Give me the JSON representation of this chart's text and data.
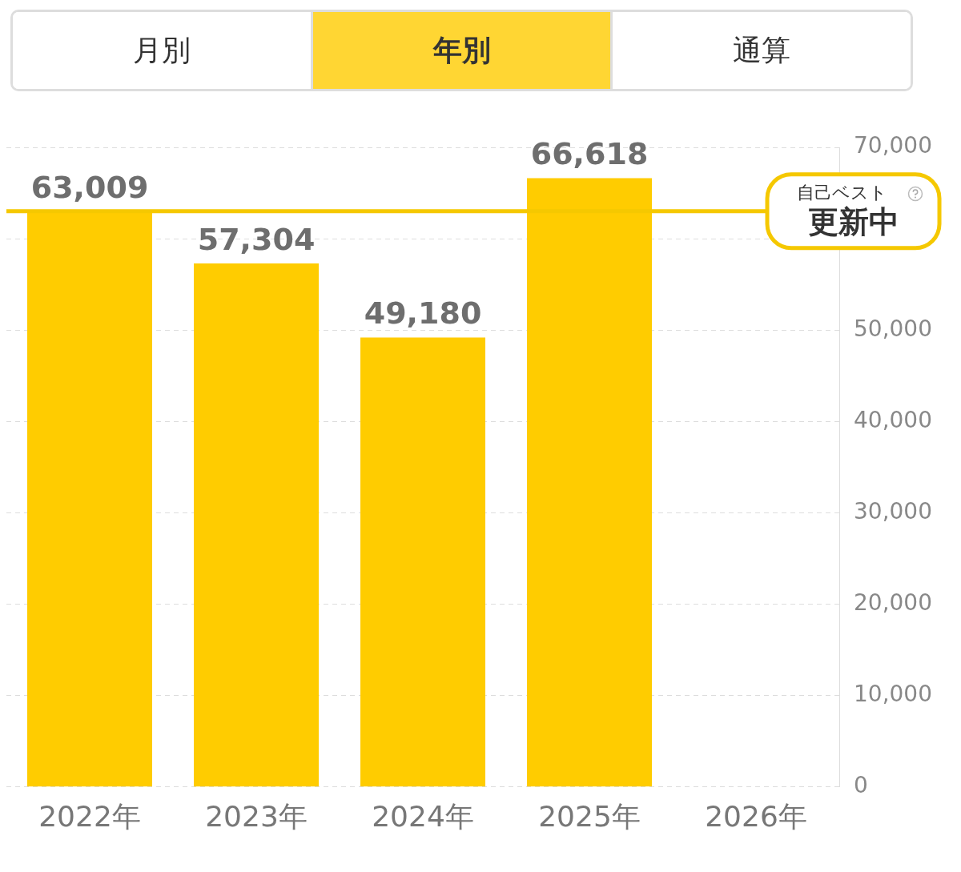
{
  "chart_data": {
    "type": "bar",
    "categories": [
      "2022年",
      "2023年",
      "2024年",
      "2025年",
      "2026年"
    ],
    "values": [
      63009,
      57304,
      49180,
      66618,
      null
    ],
    "value_labels": [
      "63,009",
      "57,304",
      "49,180",
      "66,618",
      null
    ],
    "color": "#ffcc00",
    "ylim": [
      0,
      70000
    ],
    "yticks": [
      {
        "value": 0,
        "label": "0"
      },
      {
        "value": 10000,
        "label": "10,000"
      },
      {
        "value": 20000,
        "label": "20,000"
      },
      {
        "value": 30000,
        "label": "30,000"
      },
      {
        "value": 40000,
        "label": "40,000"
      },
      {
        "value": 50000,
        "label": "50,000"
      },
      {
        "value": 60000,
        "label": null
      },
      {
        "value": 70000,
        "label": "70,000"
      }
    ],
    "grid": "y",
    "legend": false,
    "ref_lines": [
      {
        "axis": "y",
        "value": 63009,
        "label": "自己ベスト",
        "color": "#f5c800"
      }
    ],
    "annotations": [
      "月別",
      "年別",
      "通算",
      "更新中"
    ]
  }
}
